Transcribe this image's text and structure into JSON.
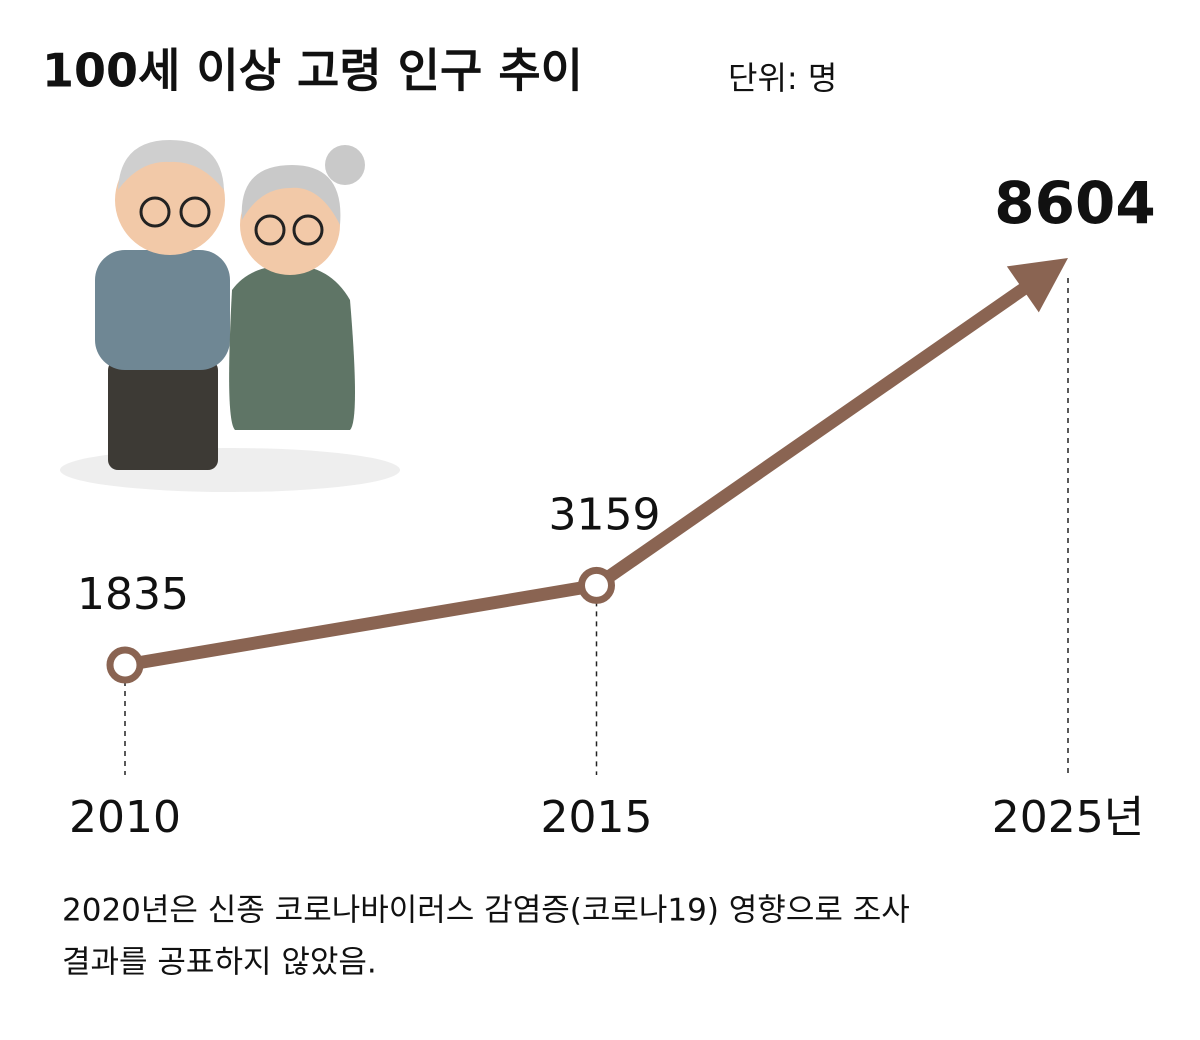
{
  "chart_data": {
    "type": "line",
    "title": "100세 이상 고령 인구 추이",
    "subtitle": "단위: 명",
    "categories": [
      "2010",
      "2015",
      "2025년"
    ],
    "values": [
      1835,
      3159,
      8604
    ],
    "color": "#8a6452",
    "note": [
      "2020년은 신종 코로나바이러스 감염증(코로나19) 영향으로 조사",
      "결과를 공표하지 않았음."
    ]
  }
}
